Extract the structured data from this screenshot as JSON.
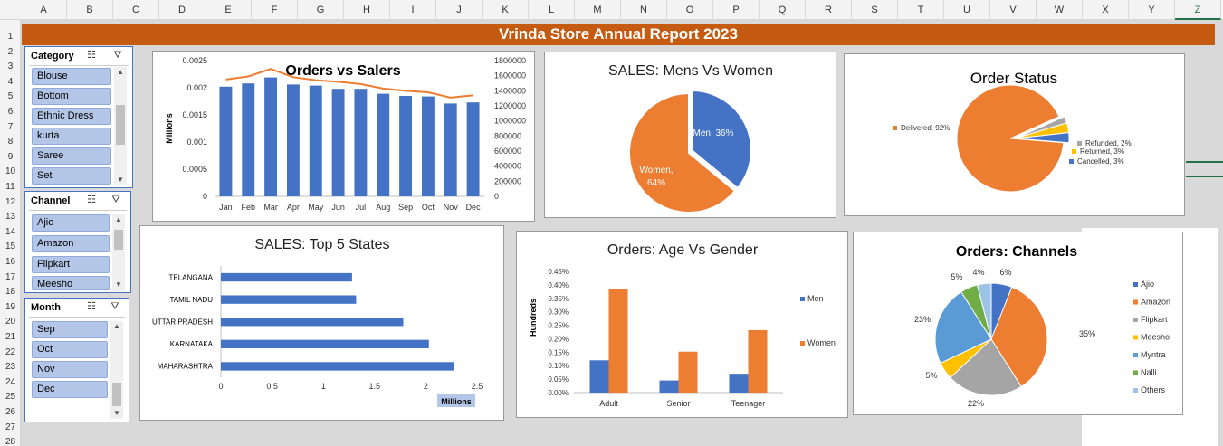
{
  "columns": [
    "A",
    "B",
    "C",
    "D",
    "E",
    "F",
    "G",
    "H",
    "I",
    "J",
    "K",
    "L",
    "M",
    "N",
    "O",
    "P",
    "Q",
    "R",
    "S",
    "T",
    "U",
    "V",
    "W",
    "X",
    "Y",
    "Z"
  ],
  "selected_column": "Z",
  "rows": [
    "1",
    "2",
    "3",
    "4",
    "5",
    "6",
    "7",
    "8",
    "9",
    "10",
    "11",
    "12",
    "13",
    "14",
    "15",
    "16",
    "17",
    "18",
    "19",
    "20",
    "21",
    "22",
    "23",
    "24",
    "25",
    "26",
    "27",
    "28"
  ],
  "report_title": "Vrinda Store Annual Report 2023",
  "slicers": {
    "category": {
      "title": "Category",
      "items": [
        "Blouse",
        "Bottom",
        "Ethnic Dress",
        "kurta",
        "Saree",
        "Set"
      ]
    },
    "channel": {
      "title": "Channel",
      "items": [
        "Ajio",
        "Amazon",
        "Flipkart",
        "Meesho"
      ]
    },
    "month": {
      "title": "Month",
      "items": [
        "Sep",
        "Oct",
        "Nov",
        "Dec"
      ]
    }
  },
  "icons": {
    "multiselect": "multi-select-icon",
    "clear_filter": "clear-filter-icon"
  },
  "colors": {
    "blue": "#4472c4",
    "orange": "#ed7d31",
    "gray": "#a5a5a5",
    "yellow": "#ffc000",
    "lightblue": "#5b9bd5",
    "green": "#70ad47",
    "paleblue": "#9dc3e6",
    "darkorange": "#c55a11"
  },
  "chart_data": [
    {
      "id": "orders_vs_sales",
      "type": "bar",
      "title": "Orders vs Salers",
      "ylabel": "Millions",
      "categories": [
        "Jan",
        "Feb",
        "Mar",
        "Apr",
        "May",
        "Jun",
        "Jul",
        "Aug",
        "Sep",
        "Oct",
        "Nov",
        "Dec"
      ],
      "series": [
        {
          "type": "bar",
          "axis": "left",
          "values": [
            0.00202,
            0.00208,
            0.00219,
            0.00206,
            0.00204,
            0.00198,
            0.00198,
            0.00189,
            0.00185,
            0.00184,
            0.00171,
            0.00173
          ]
        },
        {
          "type": "line",
          "axis": "right",
          "values": [
            1550000,
            1590000,
            1690000,
            1580000,
            1540000,
            1520000,
            1490000,
            1430000,
            1400000,
            1380000,
            1310000,
            1340000
          ]
        }
      ],
      "ylim": [
        0,
        0.0025
      ],
      "yticks": [
        "0",
        "0.0005",
        "0.001",
        "0.0015",
        "0.002",
        "0.0025"
      ],
      "y2lim": [
        0,
        1800000
      ],
      "y2ticks": [
        "0",
        "200000",
        "400000",
        "600000",
        "800000",
        "1000000",
        "1200000",
        "1400000",
        "1600000",
        "1800000"
      ]
    },
    {
      "id": "sales_gender",
      "type": "pie",
      "title": "SALES: Mens Vs Women",
      "slices": [
        {
          "label": "Men",
          "value": 36,
          "text": "Men, 36%"
        },
        {
          "label": "Women",
          "value": 64,
          "text1": "Women,",
          "text2": "64%"
        }
      ]
    },
    {
      "id": "order_status",
      "type": "pie",
      "title": "Order Status",
      "slices": [
        {
          "label": "Delivered",
          "value": 92,
          "text": "Delivered, 92%"
        },
        {
          "label": "Refunded",
          "value": 2,
          "text": "Refunded, 2%"
        },
        {
          "label": "Returned",
          "value": 3,
          "text": "Returned, 3%"
        },
        {
          "label": "Cancelled",
          "value": 3,
          "text": "Cancelled, 3%"
        }
      ]
    },
    {
      "id": "top_states",
      "type": "bar",
      "orientation": "horizontal",
      "title": "SALES: Top 5 States",
      "categories": [
        "TELANGANA",
        "TAMIL NADU",
        "UTTAR PRADESH",
        "KARNATAKA",
        "MAHARASHTRA"
      ],
      "values": [
        1.28,
        1.32,
        1.78,
        2.03,
        2.27
      ],
      "xlim": [
        0,
        2.5
      ],
      "xticks": [
        "0",
        "0.5",
        "1",
        "1.5",
        "2",
        "2.5"
      ],
      "xlabel": "Millions"
    },
    {
      "id": "age_gender",
      "type": "bar",
      "title": "Orders: Age Vs Gender",
      "ylabel": "Hundreds",
      "categories": [
        "Adult",
        "Senior",
        "Teenager"
      ],
      "series": [
        {
          "name": "Men",
          "values": [
            0.0012,
            0.00045,
            0.0007
          ]
        },
        {
          "name": "Women",
          "values": [
            0.00383,
            0.00152,
            0.00232
          ]
        }
      ],
      "ylim": [
        0,
        0.0045
      ],
      "yticks": [
        "0.00%",
        "0.05%",
        "0.10%",
        "0.15%",
        "0.20%",
        "0.25%",
        "0.30%",
        "0.35%",
        "0.40%",
        "0.45%"
      ]
    },
    {
      "id": "channels",
      "type": "pie",
      "title": "Orders: Channels",
      "slices": [
        {
          "label": "Ajio",
          "value": 6,
          "text": "6%"
        },
        {
          "label": "Amazon",
          "value": 35,
          "text": "35%"
        },
        {
          "label": "Flipkart",
          "value": 22,
          "text": "22%"
        },
        {
          "label": "Meesho",
          "value": 5,
          "text": "5%"
        },
        {
          "label": "Myntra",
          "value": 23,
          "text": "23%"
        },
        {
          "label": "Nalli",
          "value": 5,
          "text": "5%"
        },
        {
          "label": "Others",
          "value": 4,
          "text": "4%"
        }
      ]
    }
  ]
}
